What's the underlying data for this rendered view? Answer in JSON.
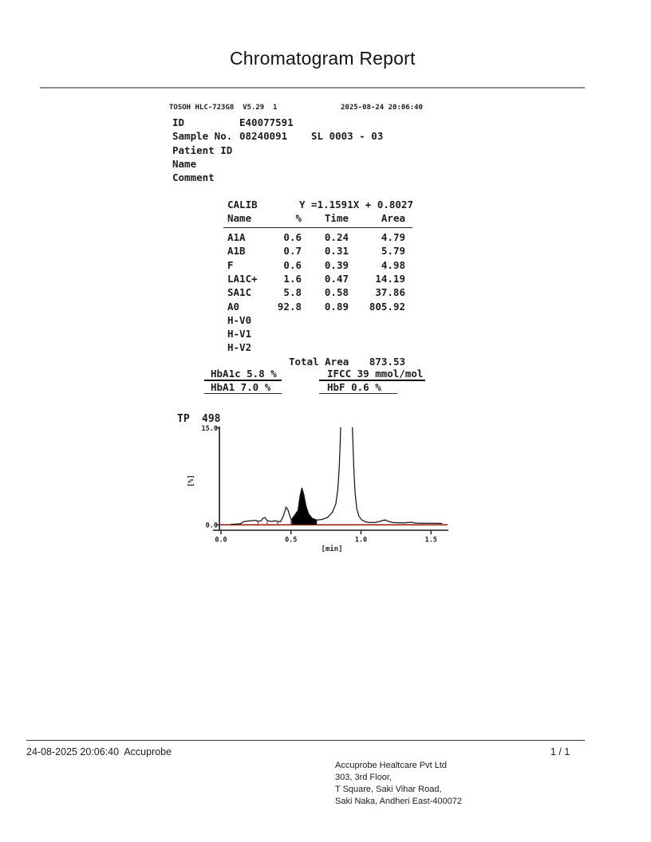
{
  "page": {
    "title": "Chromatogram Report"
  },
  "header": {
    "device_line": "TOSOH HLC-723G8  V5.29  1",
    "datetime": "2025-08-24 20:06:40",
    "fields": [
      {
        "label": "ID",
        "value": "E40077591",
        "extra": ""
      },
      {
        "label": "Sample No.",
        "value": "08240091",
        "extra": "SL 0003 - 03"
      },
      {
        "label": "Patient ID",
        "value": "",
        "extra": ""
      },
      {
        "label": "Name",
        "value": "",
        "extra": ""
      },
      {
        "label": "Comment",
        "value": "",
        "extra": ""
      }
    ]
  },
  "calib": {
    "label": "CALIB",
    "equation": "Y =1.1591X + 0.8027",
    "columns": {
      "name": "Name",
      "pct": "%",
      "time": "Time",
      "area": "Area"
    },
    "rows": [
      {
        "name": "A1A",
        "pct": "0.6",
        "time": "0.24",
        "area": "4.79"
      },
      {
        "name": "A1B",
        "pct": "0.7",
        "time": "0.31",
        "area": "5.79"
      },
      {
        "name": "F",
        "pct": "0.6",
        "time": "0.39",
        "area": "4.98"
      },
      {
        "name": "LA1C+",
        "pct": "1.6",
        "time": "0.47",
        "area": "14.19"
      },
      {
        "name": "SA1C",
        "pct": "5.8",
        "time": "0.58",
        "area": "37.86"
      },
      {
        "name": "A0",
        "pct": "92.8",
        "time": "0.89",
        "area": "805.92"
      },
      {
        "name": "H-V0",
        "pct": "",
        "time": "",
        "area": ""
      },
      {
        "name": "H-V1",
        "pct": "",
        "time": "",
        "area": ""
      },
      {
        "name": "H-V2",
        "pct": "",
        "time": "",
        "area": ""
      }
    ],
    "total_label": "Total Area",
    "total_value": "873.53"
  },
  "results": {
    "hba1c": "HbA1c 5.8 %",
    "ifcc": "IFCC 39 mmol/mol",
    "hba1": "HbA1 7.0 %",
    "hbf": "HbF 0.6 %"
  },
  "chart_data": {
    "type": "line",
    "title": "TP 498",
    "tp_label": "TP",
    "tp_value": "498",
    "xlabel": "[min]",
    "ylabel": "[%]",
    "xlim": [
      0.0,
      1.62
    ],
    "ylim": [
      0.0,
      15.0
    ],
    "x_ticks": [
      0.0,
      0.5,
      1.0,
      1.5
    ],
    "y_tick_labels": [
      "15.0",
      "0.0"
    ],
    "trace_color": "#161616",
    "baseline_color": "#ad3a32",
    "fill_color": "#000000",
    "peaks": [
      {
        "name": "A1A",
        "time": 0.24,
        "filled": false
      },
      {
        "name": "A1B",
        "time": 0.31,
        "filled": false
      },
      {
        "name": "F",
        "time": 0.39,
        "filled": false
      },
      {
        "name": "LA1C+",
        "time": 0.47,
        "filled": false
      },
      {
        "name": "SA1C",
        "time": 0.58,
        "filled": true
      },
      {
        "name": "A0",
        "time": 0.89,
        "filled": false,
        "off_scale": true
      }
    ],
    "filled_peak": {
      "name": "SA1C",
      "from": 0.505,
      "to": 0.685
    },
    "delimiters": [
      [
        0.265,
        0.5
      ],
      [
        0.33,
        0.55
      ],
      [
        0.405,
        0.45
      ],
      [
        0.5,
        0.85
      ]
    ],
    "trace": [
      [
        0.07,
        0.05
      ],
      [
        0.11,
        0.1
      ],
      [
        0.14,
        0.15
      ],
      [
        0.16,
        0.45
      ],
      [
        0.19,
        0.55
      ],
      [
        0.225,
        0.62
      ],
      [
        0.245,
        0.68
      ],
      [
        0.26,
        0.55
      ],
      [
        0.285,
        0.55
      ],
      [
        0.3,
        1.0
      ],
      [
        0.315,
        1.1
      ],
      [
        0.325,
        0.75
      ],
      [
        0.34,
        0.55
      ],
      [
        0.365,
        0.5
      ],
      [
        0.385,
        0.6
      ],
      [
        0.405,
        0.5
      ],
      [
        0.425,
        0.45
      ],
      [
        0.445,
        1.3
      ],
      [
        0.465,
        2.7
      ],
      [
        0.478,
        2.3
      ],
      [
        0.495,
        1.1
      ],
      [
        0.505,
        0.8
      ],
      [
        0.55,
        2.2
      ],
      [
        0.565,
        4.5
      ],
      [
        0.578,
        5.7
      ],
      [
        0.592,
        4.6
      ],
      [
        0.607,
        2.9
      ],
      [
        0.625,
        1.7
      ],
      [
        0.65,
        1.0
      ],
      [
        0.685,
        0.72
      ],
      [
        0.72,
        0.8
      ],
      [
        0.76,
        1.1
      ],
      [
        0.795,
        1.9
      ],
      [
        0.82,
        3.2
      ],
      [
        0.835,
        5.5
      ],
      [
        0.845,
        9.0
      ],
      [
        0.852,
        13.0
      ],
      [
        0.857,
        17.0
      ],
      [
        0.935,
        17.0
      ],
      [
        0.942,
        13.0
      ],
      [
        0.948,
        9.0
      ],
      [
        0.957,
        5.0
      ],
      [
        0.97,
        2.5
      ],
      [
        0.985,
        1.3
      ],
      [
        1.005,
        0.75
      ],
      [
        1.03,
        0.45
      ],
      [
        1.06,
        0.35
      ],
      [
        1.1,
        0.35
      ],
      [
        1.135,
        0.5
      ],
      [
        1.16,
        0.68
      ],
      [
        1.175,
        0.72
      ],
      [
        1.195,
        0.5
      ],
      [
        1.225,
        0.35
      ],
      [
        1.27,
        0.28
      ],
      [
        1.315,
        0.28
      ],
      [
        1.36,
        0.38
      ],
      [
        1.385,
        0.25
      ],
      [
        1.43,
        0.22
      ],
      [
        1.48,
        0.22
      ],
      [
        1.53,
        0.22
      ],
      [
        1.58,
        0.18
      ]
    ]
  },
  "footer": {
    "left": "24-08-2025 20:06:40  Accuprobe",
    "page": "1 / 1",
    "address": [
      "Accuprobe Healtcare Pvt Ltd",
      "303, 3rd Floor,",
      "T Square, Saki Vihar Road,",
      "Saki Naka, Andheri East-400072"
    ]
  }
}
